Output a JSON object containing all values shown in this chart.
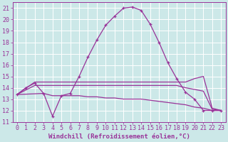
{
  "xlabel": "Windchill (Refroidissement éolien,°C)",
  "bg_color": "#cce8e8",
  "grid_color": "#ffffff",
  "line_color": "#993399",
  "xlim": [
    -0.5,
    23.5
  ],
  "ylim": [
    11,
    21.5
  ],
  "xticks": [
    0,
    1,
    2,
    3,
    4,
    5,
    6,
    7,
    8,
    9,
    10,
    11,
    12,
    13,
    14,
    15,
    16,
    17,
    18,
    19,
    20,
    21,
    22,
    23
  ],
  "yticks": [
    11,
    12,
    13,
    14,
    15,
    16,
    17,
    18,
    19,
    20,
    21
  ],
  "curve_main_x": [
    0,
    1,
    2,
    3,
    4,
    5,
    6,
    7,
    8,
    9,
    10,
    11,
    12,
    13,
    14,
    15,
    16,
    17,
    18,
    19,
    20,
    21,
    22,
    23
  ],
  "curve_main_y": [
    13.4,
    14.0,
    14.4,
    13.5,
    11.5,
    13.3,
    13.5,
    15.0,
    16.7,
    18.2,
    19.5,
    20.3,
    21.0,
    21.1,
    20.8,
    19.6,
    18.0,
    16.2,
    14.8,
    13.6,
    13.0,
    12.0,
    12.0,
    12.0
  ],
  "line1_x": [
    0,
    2,
    3,
    6,
    14,
    19,
    20,
    21,
    22,
    23
  ],
  "line1_y": [
    13.4,
    14.5,
    14.5,
    14.5,
    14.5,
    14.5,
    14.8,
    15.0,
    12.2,
    12.0
  ],
  "line2_x": [
    0,
    2,
    6,
    14,
    18,
    19,
    21,
    22,
    23
  ],
  "line2_y": [
    13.4,
    14.2,
    14.2,
    14.2,
    14.2,
    14.0,
    13.7,
    12.1,
    12.0
  ],
  "line3_x": [
    0,
    3,
    4,
    5,
    6,
    7,
    8,
    9,
    10,
    11,
    12,
    13,
    14,
    15,
    16,
    17,
    18,
    19,
    20,
    21,
    22,
    23
  ],
  "line3_y": [
    13.4,
    13.5,
    13.3,
    13.3,
    13.3,
    13.3,
    13.2,
    13.2,
    13.1,
    13.1,
    13.0,
    13.0,
    13.0,
    12.9,
    12.8,
    12.7,
    12.6,
    12.5,
    12.3,
    12.2,
    12.0,
    12.0
  ],
  "font_size_tick": 6,
  "font_size_label": 6.5
}
